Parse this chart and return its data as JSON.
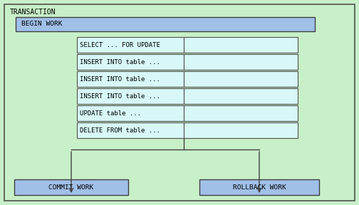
{
  "bg_color": "#c8f0c8",
  "begin_work_color": "#a0c0e8",
  "sql_cell_color": "#d8f8f8",
  "commit_color": "#a0c0e8",
  "rollback_color": "#a0c0e8",
  "border_color": "#404040",
  "text_color": "#000000",
  "title": "TRANSACTION",
  "begin_label": "BEGIN WORK",
  "sql_rows": [
    "SELECT ... FOR UPDATE",
    "INSERT INTO table ...",
    "INSERT INTO table ...",
    "INSERT INTO table ...",
    "UPDATE table ...",
    "DELETE FROM table ..."
  ],
  "commit_label": "COMMIT WORK",
  "rollback_label": "ROLLBACK WORK",
  "font_family": "monospace",
  "title_fontsize": 7.0,
  "label_fontsize": 6.8,
  "sql_fontsize": 6.5
}
